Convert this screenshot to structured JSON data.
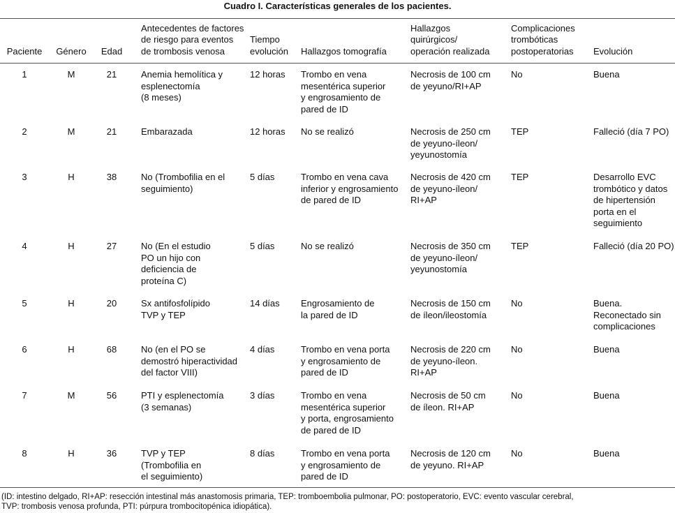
{
  "title": "Cuadro I. Características generales de los pacientes.",
  "table": {
    "header": [
      [
        "Paciente"
      ],
      [
        "Género"
      ],
      [
        "Edad"
      ],
      [
        "Antecedentes de factores",
        "de riesgo para eventos",
        "de trombosis venosa"
      ],
      [
        "Tiempo",
        "evolución"
      ],
      [
        "Hallazgos tomografía"
      ],
      [
        "Hallazgos",
        "quirúrgicos/",
        "operación realizada"
      ],
      [
        "Complicaciones",
        "trombóticas",
        "postoperatorias"
      ],
      [
        "Evolución"
      ]
    ],
    "rows": [
      [
        [
          "1"
        ],
        [
          "M"
        ],
        [
          "21"
        ],
        [
          "Anemia hemolítica y",
          "esplenectomía",
          "(8 meses)"
        ],
        [
          "12 horas"
        ],
        [
          "Trombo en vena",
          "mesentérica superior",
          "y engrosamiento de",
          "pared de ID"
        ],
        [
          "Necrosis de 100 cm",
          "de yeyuno/RI+AP"
        ],
        [
          "No"
        ],
        [
          "Buena"
        ]
      ],
      [
        [
          "2"
        ],
        [
          "M"
        ],
        [
          "21"
        ],
        [
          "Embarazada"
        ],
        [
          "12 horas"
        ],
        [
          "No se realizó"
        ],
        [
          "Necrosis de 250 cm",
          "de yeyuno-íleon/",
          "yeyunostomía"
        ],
        [
          "TEP"
        ],
        [
          "Falleció (día 7 PO)"
        ]
      ],
      [
        [
          "3"
        ],
        [
          "H"
        ],
        [
          "38"
        ],
        [
          "No (Trombofilia en el",
          "seguimiento)"
        ],
        [
          "5 días"
        ],
        [
          "Trombo en vena cava",
          "inferior y engrosamiento",
          "de pared de ID"
        ],
        [
          "Necrosis de 420 cm",
          "de yeyuno-íleon/",
          "RI+AP"
        ],
        [
          "TEP"
        ],
        [
          "Desarrollo EVC",
          "trombótico y datos",
          "de hipertensión",
          "porta en el",
          "seguimiento"
        ]
      ],
      [
        [
          "4"
        ],
        [
          "H"
        ],
        [
          "27"
        ],
        [
          "No (En el estudio",
          "PO un hijo con",
          "deficiencia de",
          "proteína C)"
        ],
        [
          "5 días"
        ],
        [
          "No se realizó"
        ],
        [
          "Necrosis de 350 cm",
          "de yeyuno-íleon/",
          "yeyunostomía"
        ],
        [
          "TEP"
        ],
        [
          "Falleció (día 20 PO)"
        ]
      ],
      [
        [
          "5"
        ],
        [
          "H"
        ],
        [
          "20"
        ],
        [
          "Sx antifosfolípido",
          "TVP y TEP"
        ],
        [
          "14 días"
        ],
        [
          "Engrosamiento de",
          "la pared de ID"
        ],
        [
          "Necrosis de 150 cm",
          "de íleon/ileostomía"
        ],
        [
          "No"
        ],
        [
          "Buena.",
          "Reconectado sin",
          "complicaciones"
        ]
      ],
      [
        [
          "6"
        ],
        [
          "H"
        ],
        [
          "68"
        ],
        [
          "No (en el PO se",
          "demostró hiperactividad",
          "del factor VIII)"
        ],
        [
          "4 días"
        ],
        [
          "Trombo en vena porta",
          "y engrosamiento de",
          "pared de ID"
        ],
        [
          "Necrosis de 220 cm",
          "de yeyuno-íleon.",
          "RI+AP"
        ],
        [
          "No"
        ],
        [
          "Buena"
        ]
      ],
      [
        [
          "7"
        ],
        [
          "M"
        ],
        [
          "56"
        ],
        [
          "PTI y esplenectomía",
          "(3 semanas)"
        ],
        [
          "3 días"
        ],
        [
          "Trombo en vena",
          "mesentérica superior",
          "y porta, engrosamiento",
          "de pared de ID"
        ],
        [
          "Necrosis de 50 cm",
          "de íleon. RI+AP"
        ],
        [
          "No"
        ],
        [
          "Buena"
        ]
      ],
      [
        [
          "8"
        ],
        [
          "H"
        ],
        [
          "36"
        ],
        [
          "TVP y TEP",
          "(Trombofilia en",
          "el seguimiento)"
        ],
        [
          "8 días"
        ],
        [
          "Trombo en vena porta",
          "y engrosamiento de",
          "pared de ID"
        ],
        [
          "Necrosis de 120 cm",
          "de yeyuno. RI+AP"
        ],
        [
          "No"
        ],
        [
          "Buena"
        ]
      ]
    ]
  },
  "footnote": [
    "(ID: intestino delgado, RI+AP: resección intestinal más anastomosis primaria, TEP: tromboembolia pulmonar, PO: postoperatorio, EVC: evento vascular cerebral,",
    "TVP: trombosis venosa profunda, PTI: púrpura trombocitopénica idiopática)."
  ]
}
